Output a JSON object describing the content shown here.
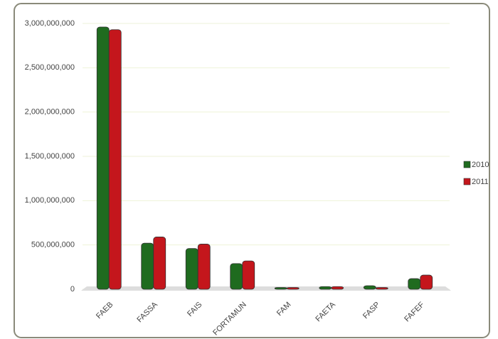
{
  "chart_data": {
    "type": "bar",
    "categories": [
      "FAEB",
      "FASSA",
      "FAIS",
      "FORTAMUN",
      "FAM",
      "FAETA",
      "FASP",
      "FAFEF"
    ],
    "series": [
      {
        "name": "2010",
        "color": "#1f6b1f",
        "values": [
          2960000000,
          520000000,
          460000000,
          290000000,
          20000000,
          30000000,
          40000000,
          120000000
        ]
      },
      {
        "name": "2011",
        "color": "#c4161c",
        "values": [
          2930000000,
          590000000,
          510000000,
          320000000,
          20000000,
          30000000,
          20000000,
          160000000
        ]
      }
    ],
    "ylim": [
      0,
      3000000000
    ],
    "yticks": [
      0,
      {
        "value": 500000000,
        "label": "500,000,000"
      },
      {
        "value": 1000000000,
        "label": "1,000,000,000"
      },
      {
        "value": 1500000000,
        "label": "1,500,000,000"
      },
      {
        "value": 2000000000,
        "label": "2,000,000,000"
      },
      {
        "value": 2500000000,
        "label": "2,500,000,000"
      },
      {
        "value": 3000000000,
        "label": "3,000,000,000"
      }
    ],
    "grid": true,
    "legend": "right"
  }
}
